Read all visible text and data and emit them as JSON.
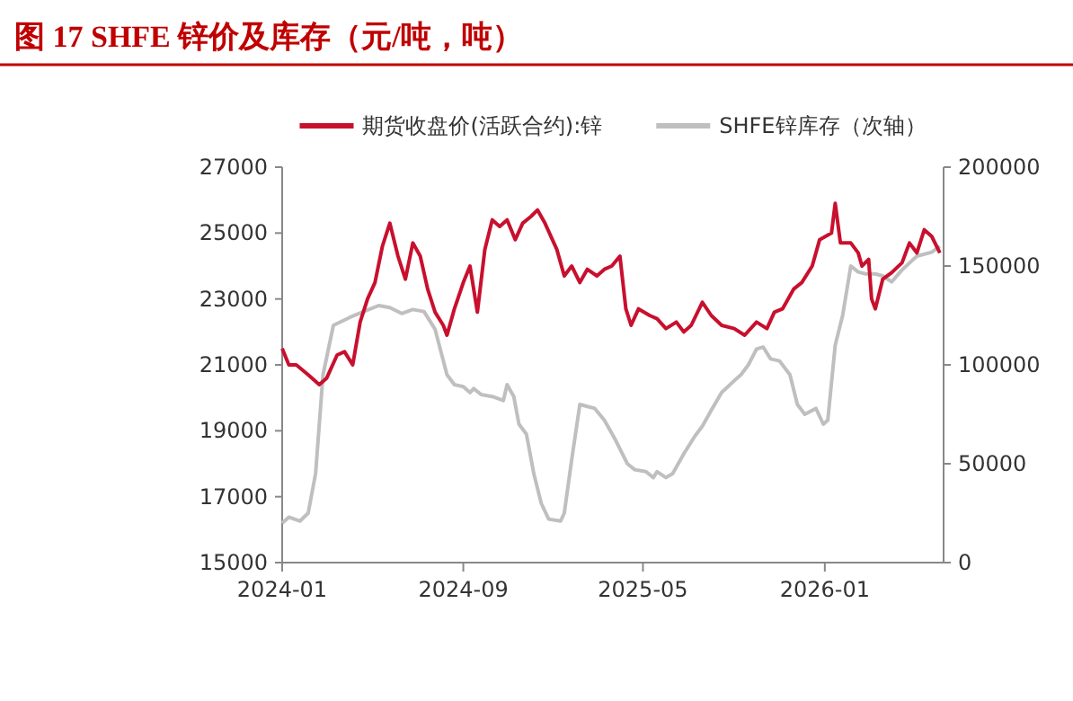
{
  "chart_data": {
    "type": "line",
    "title": "图 17  SHFE 锌价及库存（元/吨，吨）",
    "legend": "top",
    "grid": false,
    "xlim": [
      "2024-01",
      "2026-06-10"
    ],
    "xticks": [
      "2024-01",
      "2024-09",
      "2025-05",
      "2026-01"
    ],
    "ylim": [
      15000,
      27000
    ],
    "yticks": [
      15000,
      17000,
      19000,
      21000,
      23000,
      25000,
      27000
    ],
    "y2lim": [
      0,
      200000
    ],
    "y2ticks": [
      0,
      50000,
      100000,
      150000,
      200000
    ],
    "series": [
      {
        "name": "期货收盘价(活跃合约):锌",
        "color": "#c8102e",
        "x": [
          "2024-01-01",
          "2024-01-10",
          "2024-01-20",
          "2024-02-05",
          "2024-02-20",
          "2024-03-01",
          "2024-03-15",
          "2024-03-25",
          "2024-04-05",
          "2024-04-15",
          "2024-04-25",
          "2024-05-05",
          "2024-05-15",
          "2024-05-25",
          "2024-06-05",
          "2024-06-15",
          "2024-06-25",
          "2024-07-05",
          "2024-07-15",
          "2024-07-25",
          "2024-08-05",
          "2024-08-10",
          "2024-08-20",
          "2024-09-01",
          "2024-09-10",
          "2024-09-20",
          "2024-09-30",
          "2024-10-10",
          "2024-10-20",
          "2024-10-30",
          "2024-11-10",
          "2024-11-20",
          "2024-12-01",
          "2024-12-10",
          "2024-12-20",
          "2025-01-05",
          "2025-01-15",
          "2025-01-25",
          "2025-02-05",
          "2025-02-15",
          "2025-02-28",
          "2025-03-10",
          "2025-03-20",
          "2025-03-31",
          "2025-04-08",
          "2025-04-15",
          "2025-04-25",
          "2025-05-10",
          "2025-05-20",
          "2025-06-01",
          "2025-06-15",
          "2025-06-25",
          "2025-07-05",
          "2025-07-20",
          "2025-08-01",
          "2025-08-15",
          "2025-09-01",
          "2025-09-15",
          "2025-10-01",
          "2025-10-15",
          "2025-10-25",
          "2025-11-05",
          "2025-11-20",
          "2025-12-01",
          "2025-12-15",
          "2025-12-25",
          "2026-01-10",
          "2026-01-15",
          "2026-01-22",
          "2026-02-05",
          "2026-02-15",
          "2026-02-20",
          "2026-03-01",
          "2026-03-05",
          "2026-03-10",
          "2026-03-20",
          "2026-04-01",
          "2026-04-15",
          "2026-04-25",
          "2026-05-05",
          "2026-05-15",
          "2026-05-25",
          "2026-06-05"
        ],
        "values": [
          21500,
          21000,
          21000,
          20700,
          20400,
          20600,
          21300,
          21400,
          21000,
          22300,
          23000,
          23500,
          24600,
          25300,
          24300,
          23600,
          24700,
          24300,
          23300,
          22600,
          22200,
          21900,
          22700,
          23500,
          24000,
          22600,
          24500,
          25400,
          25200,
          25400,
          24800,
          25300,
          25500,
          25700,
          25300,
          24500,
          23700,
          24000,
          23500,
          23900,
          23700,
          23900,
          24000,
          24300,
          22700,
          22200,
          22700,
          22500,
          22400,
          22100,
          22300,
          22000,
          22200,
          22900,
          22500,
          22200,
          22100,
          21900,
          22300,
          22100,
          22600,
          22700,
          23300,
          23500,
          24000,
          24800,
          25000,
          25900,
          24700,
          24700,
          24400,
          24000,
          24200,
          23000,
          22700,
          23600,
          23800,
          24100,
          24700,
          24400,
          25100,
          24900,
          24400
        ]
      },
      {
        "name": "SHFE锌库存（次轴）",
        "color": "#bfbfbf",
        "axis": "y2",
        "x": [
          "2024-01-01",
          "2024-01-10",
          "2024-01-25",
          "2024-02-05",
          "2024-02-15",
          "2024-02-25",
          "2024-03-10",
          "2024-04-01",
          "2024-04-20",
          "2024-05-10",
          "2024-05-25",
          "2024-06-10",
          "2024-06-25",
          "2024-07-10",
          "2024-07-25",
          "2024-08-10",
          "2024-08-20",
          "2024-09-01",
          "2024-09-10",
          "2024-09-15",
          "2024-09-25",
          "2024-10-10",
          "2024-10-25",
          "2024-10-30",
          "2024-11-08",
          "2024-11-15",
          "2024-11-25",
          "2024-12-05",
          "2024-12-15",
          "2024-12-25",
          "2025-01-10",
          "2025-01-15",
          "2025-01-25",
          "2025-02-05",
          "2025-02-15",
          "2025-02-25",
          "2025-03-10",
          "2025-03-25",
          "2025-04-10",
          "2025-04-20",
          "2025-05-05",
          "2025-05-15",
          "2025-05-20",
          "2025-06-01",
          "2025-06-10",
          "2025-06-25",
          "2025-07-10",
          "2025-07-20",
          "2025-08-01",
          "2025-08-15",
          "2025-09-01",
          "2025-09-10",
          "2025-09-20",
          "2025-10-01",
          "2025-10-10",
          "2025-10-20",
          "2025-11-01",
          "2025-11-15",
          "2025-11-25",
          "2025-12-05",
          "2025-12-20",
          "2025-12-30",
          "2026-01-05",
          "2026-01-15",
          "2026-01-25",
          "2026-02-05",
          "2026-02-15",
          "2026-02-25",
          "2026-03-10",
          "2026-03-20",
          "2026-04-01",
          "2026-04-15",
          "2026-05-05",
          "2026-05-25",
          "2026-06-05"
        ],
        "values": [
          20000,
          23000,
          21000,
          25000,
          45000,
          95000,
          120000,
          124000,
          127000,
          130000,
          129000,
          126000,
          128000,
          127000,
          118000,
          95000,
          90000,
          89000,
          86000,
          88000,
          85000,
          84000,
          82000,
          90000,
          84000,
          70000,
          65000,
          45000,
          30000,
          22000,
          21000,
          25000,
          52000,
          80000,
          79000,
          78000,
          72000,
          62000,
          50000,
          47000,
          46000,
          43000,
          46000,
          43000,
          45000,
          55000,
          64000,
          69000,
          77000,
          86000,
          92000,
          95000,
          100000,
          108000,
          109000,
          103000,
          102000,
          95000,
          80000,
          75000,
          78000,
          70000,
          72000,
          110000,
          125000,
          150000,
          147000,
          146000,
          146000,
          145000,
          142000,
          148000,
          155000,
          157000,
          160000
        ]
      }
    ]
  }
}
